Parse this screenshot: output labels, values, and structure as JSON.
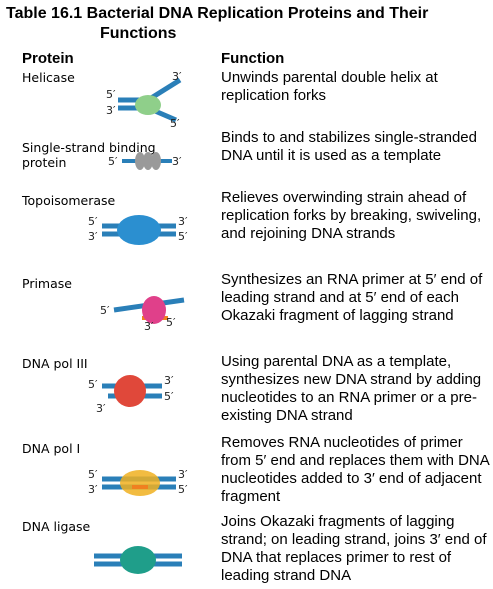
{
  "title": {
    "line1": "Table 16.1 Bacterial DNA Replication Proteins and Their",
    "line2": "Functions"
  },
  "columns": {
    "protein": "Protein",
    "function": "Function"
  },
  "rows": [
    {
      "protein": "Helicase",
      "function": "Unwinds parental double helix at replication forks",
      "labels": [
        "5′",
        "3′",
        "3′",
        "5′"
      ]
    },
    {
      "protein": "Single-strand binding protein",
      "function": "Binds to and stabilizes single-stranded DNA until it is used as a template",
      "labels": [
        "5′",
        "3′"
      ]
    },
    {
      "protein": "Topoisomerase",
      "function": "Relieves overwinding strain ahead of replication forks by breaking, swiveling, and rejoining DNA strands",
      "labels": [
        "5′",
        "3′",
        "3′",
        "5′"
      ]
    },
    {
      "protein": "Primase",
      "function": "Synthesizes an RNA primer at 5′ end of leading strand and at 5′ end of each Okazaki fragment of lagging strand",
      "labels": [
        "5′",
        "3′",
        "5′"
      ]
    },
    {
      "protein": "DNA pol III",
      "function": "Using parental DNA as a template, synthesizes new DNA strand by adding nucleotides to an RNA primer or a pre-existing DNA strand",
      "labels": [
        "5′",
        "3′",
        "5′",
        "3′"
      ]
    },
    {
      "protein": "DNA pol I",
      "function": "Removes RNA nucleotides of primer from 5′ end and replaces them with DNA nucleotides added to 3′ end of adjacent fragment",
      "labels": [
        "5′",
        "3′",
        "3′",
        "5′"
      ]
    },
    {
      "protein": "DNA ligase",
      "function": "Joins Okazaki fragments of lagging strand; on leading strand, joins 3′ end of DNA that replaces primer to rest of leading strand DNA",
      "labels": []
    }
  ],
  "colors": {
    "dna": "#2a7fb8",
    "helicase": "#8fcf8a",
    "ssb": "#9a9a9a",
    "topo": "#2b8fd0",
    "primase": "#e0408a",
    "rna": "#f08020",
    "pol3": "#e0483a",
    "pol1": "#f0b020",
    "ligase": "#1f9e8a"
  }
}
